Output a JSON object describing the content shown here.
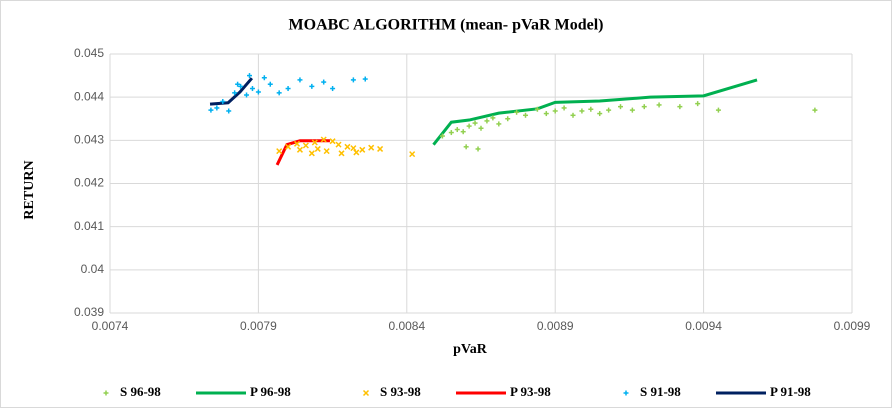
{
  "chart_data": {
    "type": "scatter",
    "title": "MOABC ALGORITHM (mean- pVaR Model)",
    "x_label": "pVaR",
    "y_label": "RETURN",
    "xlim": [
      0.0074,
      0.0099
    ],
    "xticks": [
      0.0074,
      0.0079,
      0.0084,
      0.0089,
      0.0094,
      0.0099
    ],
    "ylim": [
      0.039,
      0.045
    ],
    "yticks": [
      0.039,
      0.04,
      0.041,
      0.042,
      0.043,
      0.044,
      0.045
    ],
    "grid": true,
    "legend": "bottom",
    "series": [
      {
        "name": "S 96-98",
        "color": "#92d050",
        "mode": "markers",
        "marker": "plus",
        "x": [
          0.00852,
          0.00855,
          0.00857,
          0.00859,
          0.00861,
          0.00863,
          0.00865,
          0.00867,
          0.00869,
          0.00871,
          0.00874,
          0.00877,
          0.0088,
          0.00884,
          0.00887,
          0.0089,
          0.00893,
          0.00896,
          0.00899,
          0.00902,
          0.00905,
          0.00908,
          0.00912,
          0.00916,
          0.0092,
          0.00925,
          0.00932,
          0.00938,
          0.00945,
          0.009775,
          0.00864,
          0.0086
        ],
        "values": [
          0.0431,
          0.04318,
          0.04325,
          0.0432,
          0.04333,
          0.0434,
          0.04328,
          0.04345,
          0.04352,
          0.04338,
          0.0435,
          0.04365,
          0.04358,
          0.04372,
          0.04362,
          0.04368,
          0.04375,
          0.04358,
          0.04368,
          0.04372,
          0.04362,
          0.0437,
          0.04378,
          0.0437,
          0.04378,
          0.04382,
          0.04378,
          0.04385,
          0.0437,
          0.0437,
          0.0428,
          0.04285
        ]
      },
      {
        "name": "P 96-98",
        "color": "#00b050",
        "mode": "line",
        "x": [
          0.00849,
          0.00855,
          0.00861,
          0.00871,
          0.00884,
          0.0089,
          0.00905,
          0.00922,
          0.0094,
          0.00958
        ],
        "values": [
          0.0429,
          0.04342,
          0.04347,
          0.04363,
          0.04373,
          0.04388,
          0.04391,
          0.044,
          0.04403,
          0.0444
        ]
      },
      {
        "name": "S 93-98",
        "color": "#ffc000",
        "mode": "markers",
        "marker": "cross",
        "x": [
          0.00797,
          0.008,
          0.00803,
          0.00806,
          0.00809,
          0.00812,
          0.00815,
          0.00817,
          0.0082,
          0.00822,
          0.00825,
          0.00828,
          0.00831,
          0.00808,
          0.00813,
          0.00818,
          0.00823,
          0.00804,
          0.0081,
          0.008418
        ],
        "values": [
          0.04275,
          0.04285,
          0.04292,
          0.04288,
          0.04295,
          0.04302,
          0.04298,
          0.0429,
          0.04285,
          0.04282,
          0.04278,
          0.04283,
          0.0428,
          0.0427,
          0.04275,
          0.0427,
          0.04272,
          0.04278,
          0.0428,
          0.04268
        ]
      },
      {
        "name": "P 93-98",
        "color": "#ff0000",
        "mode": "line",
        "x": [
          0.007963,
          0.007996,
          0.00804,
          0.008141
        ],
        "values": [
          0.04243,
          0.0429,
          0.04299,
          0.04299
        ]
      },
      {
        "name": "S 91-98",
        "color": "#00b0f0",
        "mode": "markers",
        "marker": "plus",
        "x": [
          0.00774,
          0.00776,
          0.00778,
          0.0078,
          0.00782,
          0.00784,
          0.00786,
          0.00788,
          0.0079,
          0.00792,
          0.00794,
          0.00797,
          0.008,
          0.00804,
          0.00808,
          0.00812,
          0.00815,
          0.00822,
          0.00826,
          0.00787,
          0.00783
        ],
        "values": [
          0.0437,
          0.04375,
          0.0439,
          0.04368,
          0.0441,
          0.04425,
          0.04405,
          0.0442,
          0.04412,
          0.04445,
          0.0443,
          0.0441,
          0.0442,
          0.0444,
          0.04425,
          0.04435,
          0.0442,
          0.0444,
          0.04442,
          0.0445,
          0.0443
        ]
      },
      {
        "name": "P 91-98",
        "color": "#002060",
        "mode": "line",
        "x": [
          0.007737,
          0.007798,
          0.007838,
          0.007878
        ],
        "values": [
          0.04384,
          0.04387,
          0.04412,
          0.04444
        ]
      }
    ]
  }
}
